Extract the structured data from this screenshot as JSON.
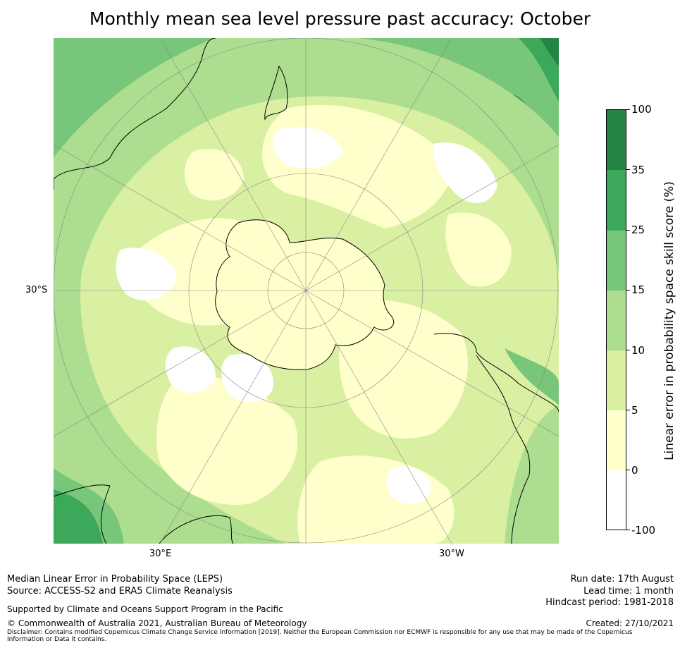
{
  "title": "Monthly mean sea level pressure past accuracy: October",
  "map": {
    "projection": "south-polar-stereographic",
    "variable": "Median Linear Error in Probability Space",
    "lat_label": "30°S",
    "lon_labels": [
      "30°E",
      "30°W"
    ]
  },
  "colorbar": {
    "title": "Linear error in probability space skill score (%)",
    "tick_labels": [
      "100",
      "35",
      "25",
      "15",
      "10",
      "5",
      "0",
      "-100"
    ],
    "bins": [
      {
        "range": "25 to 35",
        "color": "#3ba85a"
      },
      {
        "range": "35 to 100",
        "color": "#238443"
      },
      {
        "range": "15 to 25",
        "color": "#78c679"
      },
      {
        "range": "10 to 15",
        "color": "#addd8e"
      },
      {
        "range": "5 to 10",
        "color": "#d9f0a3"
      },
      {
        "range": "0 to 5",
        "color": "#ffffcc"
      },
      {
        "range": "-100 to 0",
        "color": "#ffffff"
      }
    ]
  },
  "footer": {
    "left": {
      "line1": "Median Linear Error in Probability Space (LEPS)",
      "line2": "Source: ACCESS-S2 and ERA5 Climate Reanalysis",
      "support": "Supported by Climate and Oceans Support Program in the Pacific",
      "copyright": "© Commonwealth of Australia 2021, Australian Bureau of Meteorology"
    },
    "right": {
      "run_date": "Run date: 17th August",
      "lead_time": "Lead time: 1 month",
      "hindcast": "Hindcast period: 1981-2018",
      "created": "Created: 27/10/2021"
    },
    "disclaimer": "Disclaimer: Contains modified Copernicus Climate Change Service Information [2019]. Neither the European Commission nor ECMWF is responsible for any use that may be made of the Copernicus Information or Data it contains."
  }
}
